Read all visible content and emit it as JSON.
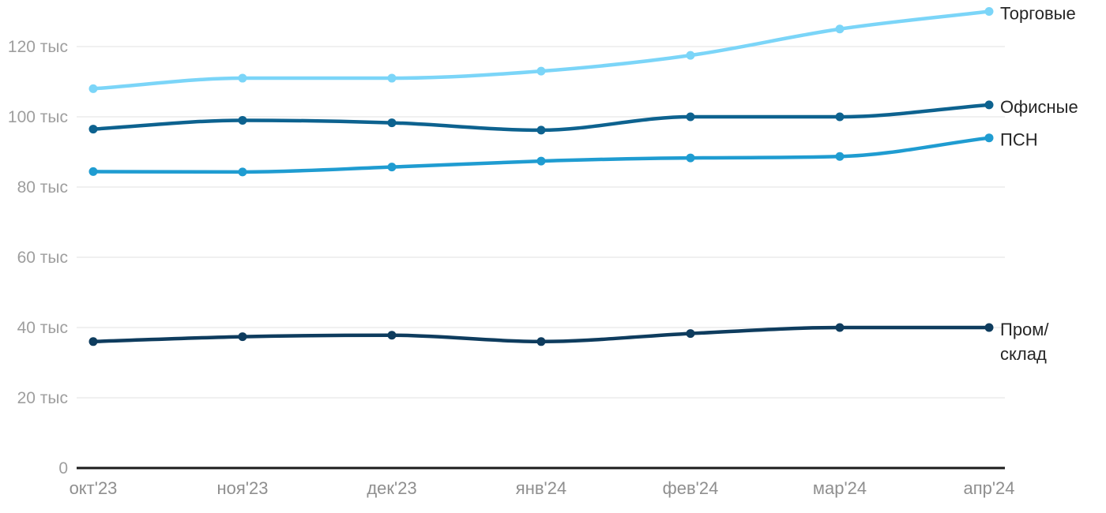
{
  "chart_data": {
    "type": "line",
    "title": "",
    "xlabel": "",
    "ylabel": "",
    "unit": "тыс",
    "grid": true,
    "legend_position": "line-end-right",
    "ylim": [
      0,
      130
    ],
    "y_tick_step": 20,
    "x_categories": [
      "окт'23",
      "ноя'23",
      "дек'23",
      "янв'24",
      "фев'24",
      "мар'24",
      "апр'24"
    ],
    "y_ticks": [
      {
        "value": 0,
        "label": "0"
      },
      {
        "value": 20,
        "label": "20 тыс"
      },
      {
        "value": 40,
        "label": "40 тыс"
      },
      {
        "value": 60,
        "label": "60 тыс"
      },
      {
        "value": 80,
        "label": "80 тыс"
      },
      {
        "value": 100,
        "label": "100 тыс"
      },
      {
        "value": 120,
        "label": "120 тыс"
      }
    ],
    "series": [
      {
        "name": "Торговые",
        "label_lines": [
          "Торговые"
        ],
        "color": "#7bd5f8",
        "values": [
          108,
          111,
          111,
          113,
          117.5,
          125,
          130
        ]
      },
      {
        "name": "Офисные",
        "label_lines": [
          "Офисные"
        ],
        "color": "#0d628f",
        "values": [
          96.5,
          99,
          98.3,
          96.2,
          100,
          100,
          103.4
        ]
      },
      {
        "name": "ПСН",
        "label_lines": [
          "ПСН"
        ],
        "color": "#1f9cd1",
        "values": [
          84.4,
          84.3,
          85.7,
          87.4,
          88.3,
          88.7,
          94
        ]
      },
      {
        "name": "Пром/склад",
        "label_lines": [
          "Пром/",
          "склад"
        ],
        "color": "#0e3c5e",
        "values": [
          36,
          37.4,
          37.8,
          36,
          38.3,
          40,
          40
        ]
      }
    ]
  },
  "colors": {
    "background": "#ffffff",
    "grid": "#e8e8e8",
    "axis": "#1b1b1b",
    "y_tick_text": "#9e9e9e",
    "x_tick_text": "#8f8f8f",
    "series_label_text": "#262626"
  }
}
